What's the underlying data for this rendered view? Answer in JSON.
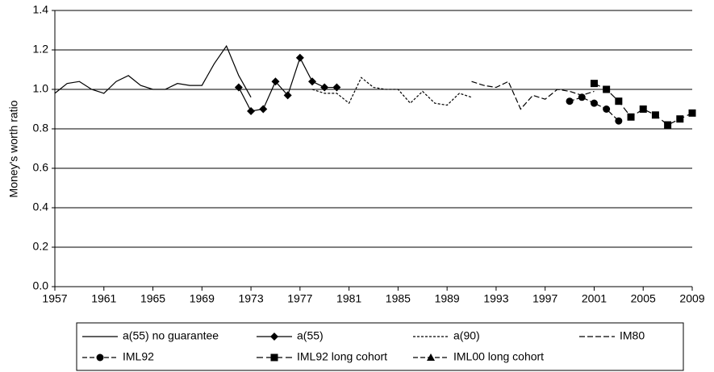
{
  "chart_data": {
    "type": "line",
    "y_label": "Money's worth ratio",
    "xlim": [
      1957,
      2009
    ],
    "xticks": [
      1957,
      1961,
      1965,
      1969,
      1973,
      1977,
      1981,
      1985,
      1989,
      1993,
      1997,
      2001,
      2005,
      2009
    ],
    "ylim": [
      0,
      1.4
    ],
    "yticks": [
      {
        "value": 0,
        "label": "0.0"
      },
      0.2,
      0.4,
      0.6,
      0.8,
      {
        "value": 1,
        "label": "1.0"
      },
      1.2,
      1.4
    ],
    "grid": true,
    "series": [
      {
        "name": "a(55) no guarantee",
        "color": "#000000",
        "dash": "none",
        "marker": "none",
        "x": [
          1957,
          1958,
          1959,
          1960,
          1961,
          1962,
          1963,
          1964,
          1965,
          1966,
          1967,
          1968,
          1969,
          1970,
          1971,
          1972,
          1973
        ],
        "values": [
          0.98,
          1.03,
          1.04,
          1.0,
          0.98,
          1.04,
          1.07,
          1.02,
          1.0,
          1.0,
          1.03,
          1.02,
          1.02,
          1.13,
          1.22,
          1.07,
          0.96
        ]
      },
      {
        "name": "a(55)",
        "color": "#000000",
        "dash": "none",
        "marker": "diamond",
        "x": [
          1972,
          1973,
          1974,
          1975,
          1976,
          1977,
          1978,
          1979,
          1980
        ],
        "values": [
          1.01,
          0.89,
          0.9,
          1.04,
          0.97,
          1.16,
          1.04,
          1.01,
          1.01
        ]
      },
      {
        "name": "a(90)",
        "color": "#000000",
        "dash": "3,2",
        "marker": "none",
        "x": [
          1978,
          1979,
          1980,
          1981,
          1982,
          1983,
          1984,
          1985,
          1986,
          1987,
          1988,
          1989,
          1990,
          1991
        ],
        "values": [
          1.0,
          0.98,
          0.98,
          0.93,
          1.06,
          1.01,
          1.0,
          1.0,
          0.93,
          0.99,
          0.93,
          0.92,
          0.98,
          0.96
        ]
      },
      {
        "name": "IM80",
        "color": "#000000",
        "dash": "7,3",
        "marker": "none",
        "x": [
          1991,
          1992,
          1993,
          1994,
          1995,
          1996,
          1997,
          1998,
          1999,
          2000,
          2001
        ],
        "values": [
          1.04,
          1.02,
          1.01,
          1.04,
          0.9,
          0.97,
          0.95,
          1.0,
          0.99,
          0.97,
          0.99
        ]
      },
      {
        "name": "IML92",
        "color": "#000000",
        "dash": "6,3",
        "marker": "circle",
        "x": [
          1999,
          2000,
          2001,
          2002,
          2003
        ],
        "values": [
          0.94,
          0.96,
          0.93,
          0.9,
          0.84
        ]
      },
      {
        "name": "IML92 long cohort",
        "color": "#000000",
        "dash": "8,4",
        "marker": "square",
        "x": [
          2001,
          2002,
          2003,
          2004,
          2005,
          2006,
          2007,
          2008,
          2009
        ],
        "values": [
          1.03,
          1.0,
          0.94,
          0.86,
          0.9,
          0.87,
          0.82,
          0.85,
          0.88
        ]
      },
      {
        "name": "IML00 long cohort",
        "color": "#000000",
        "dash": "6,3",
        "marker": "triangle",
        "x": [],
        "values": []
      }
    ]
  }
}
